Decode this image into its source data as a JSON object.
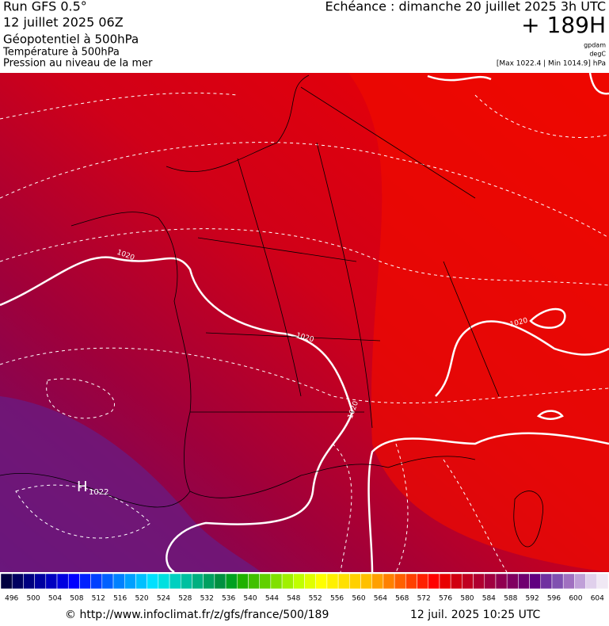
{
  "header": {
    "model": "Run GFS 0.5°",
    "run": "12 juillet 2025 06Z",
    "field1": "Géopotentiel à 500hPa",
    "field2": "Température à 500hPa",
    "field3": "Pression au niveau de la mer",
    "echeance": "Echéance : dimanche 20 juillet 2025 3h UTC",
    "lead": "+ 189H",
    "unit1": "gpdam",
    "unit2": "degC",
    "range": "[Max 1022.4 | Min 1014.9] hPa"
  },
  "map": {
    "isobar_labels": [
      "1020",
      "1020",
      "1020",
      "1020"
    ],
    "high": {
      "letter": "H",
      "value": "1022"
    }
  },
  "scale": {
    "labels": [
      496,
      500,
      504,
      508,
      512,
      516,
      520,
      524,
      528,
      532,
      536,
      540,
      544,
      548,
      552,
      556,
      560,
      564,
      568,
      572,
      576,
      580,
      584,
      588,
      592,
      596,
      600,
      604
    ],
    "colors": [
      "#000040",
      "#000060",
      "#000080",
      "#0000a0",
      "#0000c0",
      "#0000e0",
      "#0000ff",
      "#0020ff",
      "#0040ff",
      "#0060ff",
      "#0080ff",
      "#00a0ff",
      "#00c0ff",
      "#00e0ff",
      "#00e0e0",
      "#00d0c0",
      "#00c0a0",
      "#00b080",
      "#00a060",
      "#009040",
      "#00a020",
      "#20b000",
      "#40c000",
      "#60d000",
      "#80e000",
      "#a0f000",
      "#c0ff00",
      "#e0ff00",
      "#ffff00",
      "#fff000",
      "#ffe000",
      "#ffd000",
      "#ffc000",
      "#ffa000",
      "#ff8000",
      "#ff6000",
      "#ff4000",
      "#ff2000",
      "#ff0000",
      "#e80000",
      "#d00010",
      "#c00020",
      "#b00030",
      "#a00040",
      "#900050",
      "#800060",
      "#700070",
      "#600080",
      "#7030a0",
      "#8050b0",
      "#a070c0",
      "#c0a0d8",
      "#e0d0ec",
      "#f0e8f4"
    ]
  },
  "footer": {
    "url": "© http://www.infoclimat.fr/z/gfs/france/500/189",
    "date": "12 juil. 2025 10:25 UTC"
  }
}
